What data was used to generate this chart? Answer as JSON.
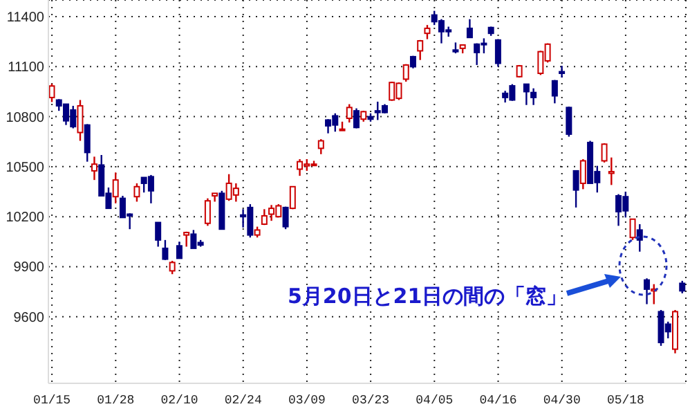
{
  "chart_data": {
    "type": "candlestick",
    "categories": [
      "01/15",
      null,
      null,
      null,
      null,
      null,
      null,
      null,
      null,
      "01/28",
      null,
      null,
      null,
      null,
      null,
      null,
      null,
      null,
      "02/10",
      null,
      null,
      null,
      null,
      null,
      null,
      null,
      null,
      "02/24",
      null,
      null,
      null,
      null,
      null,
      null,
      null,
      null,
      "03/09",
      null,
      null,
      null,
      null,
      null,
      null,
      null,
      null,
      "03/23",
      null,
      null,
      null,
      null,
      null,
      null,
      null,
      null,
      "04/05",
      null,
      null,
      null,
      null,
      null,
      null,
      null,
      null,
      "04/16",
      null,
      null,
      null,
      null,
      null,
      null,
      null,
      null,
      "04/30",
      null,
      null,
      null,
      null,
      null,
      null,
      null,
      null,
      "05/18",
      null,
      null,
      null,
      null,
      null,
      null,
      null,
      null
    ],
    "ohlc": [
      [
        10915,
        10998,
        10888,
        10984
      ],
      [
        10900,
        10905,
        10835,
        10865
      ],
      [
        10875,
        10875,
        10750,
        10775
      ],
      [
        10840,
        10865,
        10730,
        10740
      ],
      [
        10705,
        10900,
        10655,
        10865
      ],
      [
        10750,
        10755,
        10530,
        10585
      ],
      [
        10475,
        10560,
        10420,
        10515
      ],
      [
        10510,
        10570,
        10325,
        10325
      ],
      [
        10340,
        10375,
        10250,
        10250
      ],
      [
        10320,
        10465,
        10280,
        10420
      ],
      [
        10310,
        10325,
        10195,
        10195
      ],
      [
        10215,
        10220,
        10125,
        10205
      ],
      [
        10320,
        10400,
        10290,
        10380
      ],
      [
        10435,
        10435,
        10345,
        10400
      ],
      [
        10440,
        10450,
        10280,
        10355
      ],
      [
        10165,
        10165,
        10020,
        10060
      ],
      [
        10010,
        10060,
        9940,
        9945
      ],
      [
        9875,
        9935,
        9855,
        9925
      ],
      [
        10025,
        10050,
        9950,
        9950
      ],
      [
        10090,
        10110,
        10020,
        10105
      ],
      [
        10095,
        10120,
        10010,
        10010
      ],
      [
        10045,
        10060,
        10020,
        10030
      ],
      [
        10160,
        10310,
        10145,
        10295
      ],
      [
        10325,
        10340,
        10290,
        10340
      ],
      [
        10340,
        10355,
        10125,
        10125
      ],
      [
        10305,
        10455,
        10295,
        10400
      ],
      [
        10330,
        10400,
        10290,
        10370
      ],
      [
        10210,
        10245,
        10135,
        10200
      ],
      [
        10255,
        10275,
        10075,
        10090
      ],
      [
        10090,
        10140,
        10075,
        10120
      ],
      [
        10155,
        10245,
        10150,
        10205
      ],
      [
        10215,
        10270,
        10175,
        10250
      ],
      [
        10200,
        10275,
        10195,
        10265
      ],
      [
        10255,
        10260,
        10125,
        10140
      ],
      [
        10250,
        10380,
        10245,
        10380
      ],
      [
        10485,
        10545,
        10445,
        10530
      ],
      [
        10505,
        10545,
        10475,
        10515
      ],
      [
        10510,
        10535,
        10505,
        10515
      ],
      [
        10610,
        10665,
        10575,
        10655
      ],
      [
        10780,
        10785,
        10700,
        10745
      ],
      [
        10805,
        10820,
        10710,
        10750
      ],
      [
        10720,
        10770,
        10720,
        10725
      ],
      [
        10790,
        10875,
        10765,
        10855
      ],
      [
        10835,
        10850,
        10730,
        10735
      ],
      [
        10785,
        10835,
        10770,
        10830
      ],
      [
        10800,
        10820,
        10770,
        10785
      ],
      [
        10835,
        10890,
        10780,
        10825
      ],
      [
        10865,
        10875,
        10820,
        10825
      ],
      [
        10900,
        11010,
        10895,
        11005
      ],
      [
        10910,
        11005,
        10900,
        11000
      ],
      [
        11025,
        11115,
        11010,
        11110
      ],
      [
        11160,
        11165,
        11090,
        11100
      ],
      [
        11195,
        11260,
        11140,
        11255
      ],
      [
        11300,
        11350,
        11265,
        11330
      ],
      [
        11410,
        11435,
        11350,
        11370
      ],
      [
        11375,
        11385,
        11240,
        11310
      ],
      [
        11320,
        11340,
        11280,
        11310
      ],
      [
        11200,
        11245,
        11180,
        11190
      ],
      [
        11210,
        11230,
        11180,
        11230
      ],
      [
        11330,
        11385,
        11275,
        11275
      ],
      [
        11235,
        11240,
        11110,
        11185
      ],
      [
        11240,
        11270,
        11180,
        11235
      ],
      [
        11335,
        11340,
        11285,
        11300
      ],
      [
        11260,
        11265,
        11100,
        11120
      ],
      [
        10940,
        10955,
        10885,
        10915
      ],
      [
        10985,
        10995,
        10895,
        10900
      ],
      [
        11040,
        11110,
        11035,
        11105
      ],
      [
        10995,
        10995,
        10870,
        10950
      ],
      [
        10945,
        10970,
        10870,
        10915
      ],
      [
        11060,
        11195,
        11050,
        11190
      ],
      [
        11135,
        11240,
        11125,
        11235
      ],
      [
        11015,
        11020,
        10880,
        10925
      ],
      [
        11070,
        11105,
        11035,
        11060
      ],
      [
        10855,
        10860,
        10680,
        10695
      ],
      [
        10475,
        10475,
        10255,
        10360
      ],
      [
        10400,
        10545,
        10365,
        10535
      ],
      [
        10645,
        10655,
        10400,
        10400
      ],
      [
        10470,
        10505,
        10345,
        10405
      ],
      [
        10535,
        10640,
        10525,
        10635
      ],
      [
        10460,
        10555,
        10390,
        10470
      ],
      [
        10325,
        10335,
        10145,
        10230
      ],
      [
        10320,
        10350,
        10195,
        10235
      ],
      [
        10075,
        10185,
        10060,
        10185
      ],
      [
        10120,
        10155,
        9990,
        10060
      ],
      [
        9820,
        9830,
        9675,
        9765
      ],
      [
        9755,
        9795,
        9675,
        9765
      ],
      [
        9630,
        9640,
        9425,
        9445
      ],
      [
        9555,
        9570,
        9470,
        9510
      ],
      [
        9405,
        9640,
        9380,
        9630
      ],
      [
        9800,
        9815,
        9740,
        9755
      ]
    ],
    "colors": [
      "#cc0000",
      "#000080",
      "#000080",
      "#000080",
      "#cc0000",
      "#000080",
      "#cc0000",
      "#000080",
      "#000080",
      "#cc0000",
      "#000080",
      "#000080",
      "#cc0000",
      "#000080",
      "#000080",
      "#000080",
      "#000080",
      "#cc0000",
      "#000080",
      "#cc0000",
      "#000080",
      "#000080",
      "#cc0000",
      "#cc0000",
      "#000080",
      "#cc0000",
      "#cc0000",
      "#000080",
      "#000080",
      "#cc0000",
      "#cc0000",
      "#cc0000",
      "#cc0000",
      "#000080",
      "#cc0000",
      "#cc0000",
      "#cc0000",
      "#cc0000",
      "#cc0000",
      "#000080",
      "#000080",
      "#cc0000",
      "#cc0000",
      "#000080",
      "#cc0000",
      "#000080",
      "#000080",
      "#000080",
      "#cc0000",
      "#cc0000",
      "#cc0000",
      "#000080",
      "#cc0000",
      "#cc0000",
      "#000080",
      "#000080",
      "#000080",
      "#000080",
      "#cc0000",
      "#000080",
      "#000080",
      "#000080",
      "#000080",
      "#000080",
      "#000080",
      "#000080",
      "#cc0000",
      "#000080",
      "#000080",
      "#cc0000",
      "#cc0000",
      "#000080",
      "#000080",
      "#000080",
      "#000080",
      "#cc0000",
      "#000080",
      "#000080",
      "#cc0000",
      "#cc0000",
      "#000080",
      "#000080",
      "#cc0000",
      "#000080",
      "#000080",
      "#cc0000",
      "#000080",
      "#000080",
      "#cc0000",
      "#000080"
    ],
    "ylim": [
      9200,
      11500
    ],
    "yticks": [
      9600,
      9900,
      10200,
      10500,
      10800,
      11100,
      11400
    ],
    "grid": true,
    "annotations": [
      "5月20日と21日の間の「窓」"
    ]
  }
}
